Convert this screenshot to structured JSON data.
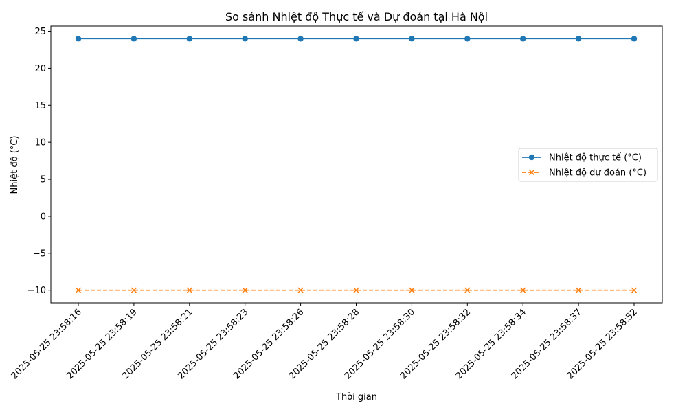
{
  "chart_data": {
    "type": "line",
    "title": "So sánh Nhiệt độ Thực tế và Dự đoán tại Hà Nội",
    "xlabel": "Thời gian",
    "ylabel": "Nhiệt độ (°C)",
    "categories": [
      "2025-05-25 23:58:16",
      "2025-05-25 23:58:19",
      "2025-05-25 23:58:21",
      "2025-05-25 23:58:23",
      "2025-05-25 23:58:26",
      "2025-05-25 23:58:28",
      "2025-05-25 23:58:30",
      "2025-05-25 23:58:32",
      "2025-05-25 23:58:34",
      "2025-05-25 23:58:37",
      "2025-05-25 23:58:52"
    ],
    "yticks": [
      "25",
      "20",
      "15",
      "10",
      "5",
      "0",
      "−10"
    ],
    "ytick_values": [
      25,
      20,
      15,
      10,
      5,
      0,
      -10
    ],
    "yticks_extra": {
      "label": "−5",
      "value": -5
    },
    "ylim": [
      -11.7,
      25.7
    ],
    "grid": false,
    "legend_position": "center-right",
    "series": [
      {
        "name": "Nhiệt độ thực tế (°C)",
        "values": [
          24,
          24,
          24,
          24,
          24,
          24,
          24,
          24,
          24,
          24,
          24
        ],
        "color": "#1f77b4",
        "marker": "circle",
        "line_style": "solid"
      },
      {
        "name": "Nhiệt độ dự đoán (°C)",
        "values": [
          -10,
          -10,
          -10,
          -10,
          -10,
          -10,
          -10,
          -10,
          -10,
          -10,
          -10
        ],
        "color": "#ff7f0e",
        "marker": "x",
        "line_style": "dashed"
      }
    ]
  }
}
